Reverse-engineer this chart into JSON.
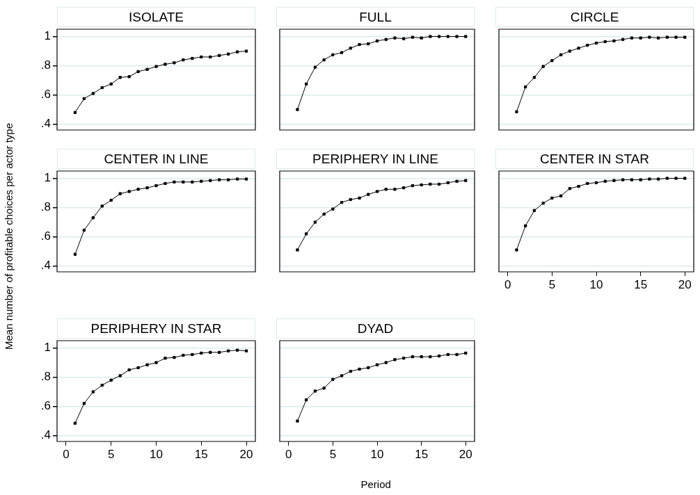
{
  "chart_data": [
    {
      "type": "line",
      "title": "ISOLATE",
      "ylabel": "Mean number of profitable choices per actor type",
      "x": [
        1,
        2,
        3,
        4,
        5,
        6,
        7,
        8,
        9,
        10,
        11,
        12,
        13,
        14,
        15,
        16,
        17,
        18,
        19,
        20
      ],
      "color": "#000000",
      "marker": "square",
      "values": [
        0.48,
        0.575,
        0.61,
        0.65,
        0.675,
        0.72,
        0.725,
        0.76,
        0.775,
        0.795,
        0.81,
        0.82,
        0.84,
        0.85,
        0.86,
        0.86,
        0.87,
        0.88,
        0.895,
        0.9
      ],
      "xlim": [
        -1,
        21
      ],
      "ylim": [
        0.36,
        1.05
      ],
      "yticks": [
        {
          "value": 0.4,
          "label": ".4"
        },
        {
          "value": 0.6,
          "label": ".6"
        },
        {
          "value": 0.8,
          "label": ".8"
        },
        1
      ],
      "grid": "y",
      "tick_labels": "y"
    },
    {
      "type": "line",
      "title": "FULL",
      "x": [
        1,
        2,
        3,
        4,
        5,
        6,
        7,
        8,
        9,
        10,
        11,
        12,
        13,
        14,
        15,
        16,
        17,
        18,
        19,
        20
      ],
      "color": "#000000",
      "marker": "square",
      "values": [
        0.5,
        0.675,
        0.79,
        0.84,
        0.875,
        0.89,
        0.92,
        0.945,
        0.95,
        0.97,
        0.98,
        0.99,
        0.985,
        0.995,
        0.99,
        1,
        1,
        1,
        1,
        1
      ],
      "xlim": [
        -1,
        21
      ],
      "ylim": [
        0.36,
        1.05
      ],
      "yticks": [
        0.4,
        0.6,
        0.8,
        1
      ],
      "grid": "y",
      "tick_labels": false
    },
    {
      "type": "line",
      "title": "CIRCLE",
      "x": [
        1,
        2,
        3,
        4,
        5,
        6,
        7,
        8,
        9,
        10,
        11,
        12,
        13,
        14,
        15,
        16,
        17,
        18,
        19,
        20
      ],
      "color": "#000000",
      "marker": "square",
      "values": [
        0.485,
        0.655,
        0.72,
        0.795,
        0.835,
        0.875,
        0.9,
        0.92,
        0.94,
        0.955,
        0.965,
        0.97,
        0.98,
        0.99,
        0.99,
        0.995,
        0.99,
        0.995,
        0.995,
        0.995
      ],
      "xlim": [
        -1,
        21
      ],
      "ylim": [
        0.36,
        1.05
      ],
      "yticks": [
        0.4,
        0.6,
        0.8,
        1
      ],
      "grid": "y",
      "tick_labels": false
    },
    {
      "type": "line",
      "title": "CENTER IN LINE",
      "x": [
        1,
        2,
        3,
        4,
        5,
        6,
        7,
        8,
        9,
        10,
        11,
        12,
        13,
        14,
        15,
        16,
        17,
        18,
        19,
        20
      ],
      "color": "#000000",
      "marker": "square",
      "values": [
        0.48,
        0.645,
        0.73,
        0.81,
        0.85,
        0.895,
        0.91,
        0.925,
        0.935,
        0.95,
        0.965,
        0.975,
        0.975,
        0.975,
        0.98,
        0.985,
        0.99,
        0.99,
        0.995,
        0.995
      ],
      "xlim": [
        -1,
        21
      ],
      "ylim": [
        0.36,
        1.05
      ],
      "yticks": [
        {
          "value": 0.4,
          "label": ".4"
        },
        {
          "value": 0.6,
          "label": ".6"
        },
        {
          "value": 0.8,
          "label": ".8"
        },
        1
      ],
      "grid": "y",
      "tick_labels": "y"
    },
    {
      "type": "line",
      "title": "PERIPHERY IN LINE",
      "x": [
        1,
        2,
        3,
        4,
        5,
        6,
        7,
        8,
        9,
        10,
        11,
        12,
        13,
        14,
        15,
        16,
        17,
        18,
        19,
        20
      ],
      "color": "#000000",
      "marker": "square",
      "values": [
        0.51,
        0.62,
        0.7,
        0.755,
        0.79,
        0.835,
        0.855,
        0.865,
        0.89,
        0.91,
        0.925,
        0.925,
        0.935,
        0.95,
        0.955,
        0.96,
        0.96,
        0.97,
        0.98,
        0.985
      ],
      "xlim": [
        -1,
        21
      ],
      "ylim": [
        0.36,
        1.05
      ],
      "yticks": [
        0.4,
        0.6,
        0.8,
        1
      ],
      "grid": "y",
      "tick_labels": false
    },
    {
      "type": "line",
      "title": "CENTER IN STAR",
      "x": [
        1,
        2,
        3,
        4,
        5,
        6,
        7,
        8,
        9,
        10,
        11,
        12,
        13,
        14,
        15,
        16,
        17,
        18,
        19,
        20
      ],
      "color": "#000000",
      "marker": "square",
      "values": [
        0.51,
        0.675,
        0.78,
        0.83,
        0.865,
        0.88,
        0.93,
        0.945,
        0.965,
        0.97,
        0.98,
        0.985,
        0.99,
        0.99,
        0.99,
        0.995,
        0.995,
        1,
        1,
        1
      ],
      "xlim": [
        -1,
        21
      ],
      "ylim": [
        0.36,
        1.05
      ],
      "xticks": [
        0,
        5,
        10,
        15,
        20
      ],
      "yticks": [
        0.4,
        0.6,
        0.8,
        1
      ],
      "grid": "y",
      "tick_labels": "x"
    },
    {
      "type": "line",
      "title": "PERIPHERY IN STAR",
      "x": [
        1,
        2,
        3,
        4,
        5,
        6,
        7,
        8,
        9,
        10,
        11,
        12,
        13,
        14,
        15,
        16,
        17,
        18,
        19,
        20
      ],
      "color": "#000000",
      "marker": "square",
      "values": [
        0.485,
        0.62,
        0.7,
        0.745,
        0.78,
        0.81,
        0.85,
        0.865,
        0.885,
        0.9,
        0.93,
        0.935,
        0.95,
        0.955,
        0.965,
        0.97,
        0.97,
        0.98,
        0.985,
        0.98
      ],
      "xlim": [
        -1,
        21
      ],
      "ylim": [
        0.36,
        1.05
      ],
      "xticks": [
        0,
        5,
        10,
        15,
        20
      ],
      "yticks": [
        {
          "value": 0.4,
          "label": ".4"
        },
        {
          "value": 0.6,
          "label": ".6"
        },
        {
          "value": 0.8,
          "label": ".8"
        },
        1
      ],
      "grid": "y"
    },
    {
      "type": "line",
      "title": "DYAD",
      "xlabel": "Period",
      "x": [
        1,
        2,
        3,
        4,
        5,
        6,
        7,
        8,
        9,
        10,
        11,
        12,
        13,
        14,
        15,
        16,
        17,
        18,
        19,
        20
      ],
      "color": "#000000",
      "marker": "square",
      "values": [
        0.5,
        0.645,
        0.705,
        0.725,
        0.785,
        0.81,
        0.84,
        0.855,
        0.865,
        0.885,
        0.9,
        0.92,
        0.93,
        0.94,
        0.94,
        0.94,
        0.945,
        0.955,
        0.955,
        0.965
      ],
      "xlim": [
        -1,
        21
      ],
      "ylim": [
        0.36,
        1.05
      ],
      "xticks": [
        0,
        5,
        10,
        15,
        20
      ],
      "yticks": [
        0.4,
        0.6,
        0.8,
        1
      ],
      "grid": "y",
      "tick_labels": "x"
    }
  ]
}
